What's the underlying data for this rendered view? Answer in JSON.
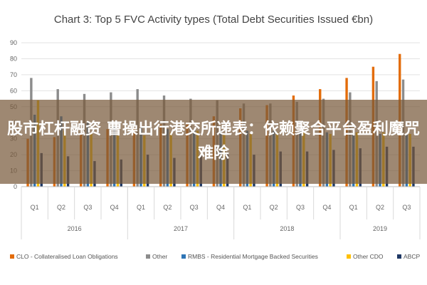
{
  "banner": {
    "text": "股市杠杆融资 曹操出行港交所递表：依赖聚合平台盈利魔咒难除"
  },
  "chart_data": {
    "type": "bar",
    "title": "Chart 3: Top 5 FVC Activity types (Total Debt Securities Issued €bn)",
    "ylim": [
      0,
      90
    ],
    "yticks": [
      0,
      10,
      20,
      30,
      40,
      50,
      60,
      70,
      80,
      90
    ],
    "grid": true,
    "legend_position": "bottom",
    "categories": [
      "Q1",
      "Q2",
      "Q3",
      "Q4",
      "Q1",
      "Q2",
      "Q3",
      "Q4",
      "Q1",
      "Q2",
      "Q3",
      "Q4",
      "Q1",
      "Q2",
      "Q3"
    ],
    "years": [
      {
        "label": "2016",
        "quarters": 4
      },
      {
        "label": "2017",
        "quarters": 4
      },
      {
        "label": "2018",
        "quarters": 4
      },
      {
        "label": "2019",
        "quarters": 3
      }
    ],
    "series": [
      {
        "name": "CLO - Collateralised Loan Obligations",
        "color": "#e36c0a",
        "values": [
          30,
          31,
          33,
          36,
          37,
          39,
          40,
          44,
          49,
          51,
          57,
          61,
          68,
          75,
          83
        ]
      },
      {
        "name": "Other",
        "color": "#8c8c8c",
        "values": [
          68,
          61,
          58,
          59,
          61,
          57,
          55,
          54,
          52,
          52,
          53,
          55,
          59,
          66,
          67
        ]
      },
      {
        "name": "RMBS - Residential Mortgage Backed Securities",
        "color": "#2e75b6",
        "values": [
          45,
          44,
          40,
          38,
          37,
          36,
          36,
          35,
          35,
          35,
          35,
          34,
          34,
          33,
          33
        ]
      },
      {
        "name": "Other CDO",
        "color": "#ffc000",
        "values": [
          54,
          35,
          33,
          32,
          32,
          34,
          35,
          33,
          33,
          34,
          34,
          33,
          34,
          34,
          33
        ]
      },
      {
        "name": "ABCP",
        "color": "#1f3864",
        "values": [
          21,
          19,
          16,
          17,
          20,
          18,
          20,
          21,
          20,
          22,
          22,
          23,
          24,
          25,
          25
        ]
      }
    ]
  }
}
